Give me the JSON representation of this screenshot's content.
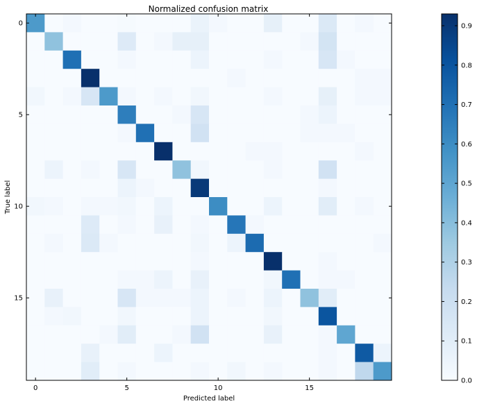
{
  "chart_data": {
    "type": "heatmap",
    "title": "Normalized confusion matrix",
    "xlabel": "Predicted label",
    "ylabel": "True label",
    "n_classes": 20,
    "x_ticks": [
      0,
      5,
      10,
      15
    ],
    "y_ticks": [
      0,
      5,
      10,
      15
    ],
    "colorbar": {
      "range": [
        0.0,
        0.93
      ],
      "ticks": [
        "0.0",
        "0.1",
        "0.2",
        "0.3",
        "0.4",
        "0.5",
        "0.6",
        "0.7",
        "0.8",
        "0.9"
      ],
      "colormap": "Blues"
    },
    "matrix": [
      [
        0.55,
        0.0,
        0.02,
        0.0,
        0.0,
        0.01,
        0.0,
        0.0,
        0.0,
        0.06,
        0.02,
        0.0,
        0.0,
        0.08,
        0.0,
        0.0,
        0.13,
        0.0,
        0.02,
        0.0
      ],
      [
        0.0,
        0.38,
        0.0,
        0.0,
        0.0,
        0.12,
        0.0,
        0.02,
        0.08,
        0.08,
        0.0,
        0.0,
        0.0,
        0.0,
        0.0,
        0.02,
        0.17,
        0.0,
        0.0,
        0.0
      ],
      [
        0.0,
        0.0,
        0.7,
        0.0,
        0.0,
        0.02,
        0.0,
        0.0,
        0.0,
        0.05,
        0.0,
        0.0,
        0.0,
        0.02,
        0.0,
        0.0,
        0.15,
        0.02,
        0.0,
        0.0
      ],
      [
        0.0,
        0.0,
        0.0,
        0.93,
        0.0,
        0.0,
        0.0,
        0.0,
        0.0,
        0.0,
        0.0,
        0.02,
        0.0,
        0.0,
        0.0,
        0.0,
        0.0,
        0.0,
        0.02,
        0.02
      ],
      [
        0.03,
        0.0,
        0.02,
        0.15,
        0.55,
        0.02,
        0.0,
        0.02,
        0.0,
        0.03,
        0.0,
        0.0,
        0.0,
        0.02,
        0.0,
        0.0,
        0.08,
        0.0,
        0.02,
        0.02
      ],
      [
        0.0,
        0.0,
        0.0,
        0.0,
        0.0,
        0.65,
        0.0,
        0.0,
        0.02,
        0.15,
        0.0,
        0.0,
        0.0,
        0.0,
        0.0,
        0.02,
        0.05,
        0.0,
        0.0,
        0.0
      ],
      [
        0.0,
        0.0,
        0.0,
        0.0,
        0.0,
        0.02,
        0.7,
        0.0,
        0.0,
        0.18,
        0.0,
        0.0,
        0.0,
        0.0,
        0.0,
        0.02,
        0.02,
        0.02,
        0.0,
        0.0
      ],
      [
        0.0,
        0.0,
        0.0,
        0.0,
        0.0,
        0.0,
        0.0,
        0.93,
        0.0,
        0.0,
        0.0,
        0.0,
        0.02,
        0.02,
        0.0,
        0.0,
        0.0,
        0.0,
        0.02,
        0.0
      ],
      [
        0.0,
        0.05,
        0.0,
        0.02,
        0.0,
        0.15,
        0.0,
        0.0,
        0.38,
        0.03,
        0.0,
        0.0,
        0.0,
        0.02,
        0.0,
        0.0,
        0.18,
        0.0,
        0.0,
        0.0
      ],
      [
        0.0,
        0.0,
        0.0,
        0.0,
        0.0,
        0.05,
        0.02,
        0.0,
        0.0,
        0.9,
        0.0,
        0.0,
        0.0,
        0.0,
        0.0,
        0.0,
        0.02,
        0.0,
        0.0,
        0.0
      ],
      [
        0.03,
        0.02,
        0.0,
        0.02,
        0.02,
        0.03,
        0.0,
        0.05,
        0.0,
        0.0,
        0.6,
        0.0,
        0.0,
        0.05,
        0.0,
        0.0,
        0.1,
        0.0,
        0.02,
        0.0
      ],
      [
        0.0,
        0.0,
        0.0,
        0.12,
        0.0,
        0.02,
        0.0,
        0.07,
        0.0,
        0.02,
        0.0,
        0.68,
        0.02,
        0.0,
        0.0,
        0.0,
        0.0,
        0.0,
        0.0,
        0.0
      ],
      [
        0.0,
        0.02,
        0.0,
        0.13,
        0.02,
        0.0,
        0.0,
        0.0,
        0.0,
        0.03,
        0.0,
        0.05,
        0.72,
        0.0,
        0.0,
        0.0,
        0.0,
        0.0,
        0.0,
        0.02
      ],
      [
        0.0,
        0.0,
        0.0,
        0.0,
        0.0,
        0.0,
        0.0,
        0.0,
        0.0,
        0.02,
        0.0,
        0.0,
        0.0,
        0.93,
        0.0,
        0.0,
        0.02,
        0.0,
        0.0,
        0.0
      ],
      [
        0.0,
        0.0,
        0.0,
        0.0,
        0.0,
        0.02,
        0.02,
        0.05,
        0.0,
        0.07,
        0.0,
        0.0,
        0.0,
        0.03,
        0.7,
        0.0,
        0.02,
        0.02,
        0.0,
        0.0
      ],
      [
        0.0,
        0.07,
        0.0,
        0.0,
        0.0,
        0.15,
        0.02,
        0.02,
        0.02,
        0.05,
        0.0,
        0.02,
        0.0,
        0.05,
        0.0,
        0.38,
        0.1,
        0.0,
        0.0,
        0.0
      ],
      [
        0.0,
        0.02,
        0.03,
        0.0,
        0.0,
        0.03,
        0.0,
        0.0,
        0.0,
        0.05,
        0.0,
        0.0,
        0.0,
        0.03,
        0.0,
        0.0,
        0.8,
        0.0,
        0.0,
        0.0
      ],
      [
        0.0,
        0.0,
        0.0,
        0.0,
        0.02,
        0.1,
        0.0,
        0.0,
        0.02,
        0.18,
        0.0,
        0.0,
        0.0,
        0.07,
        0.0,
        0.0,
        0.02,
        0.5,
        0.0,
        0.0
      ],
      [
        0.0,
        0.0,
        0.0,
        0.07,
        0.0,
        0.0,
        0.0,
        0.05,
        0.0,
        0.0,
        0.0,
        0.0,
        0.0,
        0.0,
        0.0,
        0.0,
        0.02,
        0.0,
        0.78,
        0.05
      ],
      [
        0.0,
        0.0,
        0.0,
        0.1,
        0.0,
        0.02,
        0.0,
        0.0,
        0.0,
        0.02,
        0.0,
        0.03,
        0.0,
        0.02,
        0.0,
        0.0,
        0.02,
        0.0,
        0.25,
        0.55
      ]
    ]
  }
}
